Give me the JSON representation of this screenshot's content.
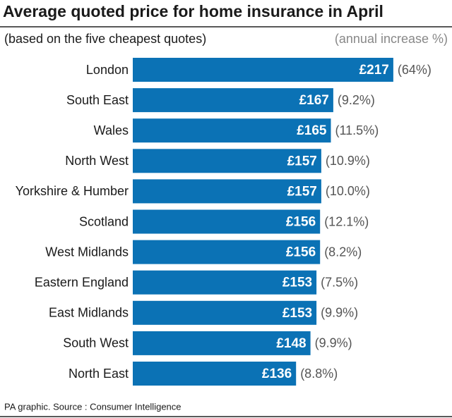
{
  "chart_data": {
    "type": "bar",
    "orientation": "horizontal",
    "title": "Average quoted price for home insurance in April",
    "subtitle": "(based on the five cheapest quotes)",
    "annotation_header": "(annual increase %)",
    "categories": [
      "London",
      "South East",
      "Wales",
      "North West",
      "Yorkshire & Humber",
      "Scotland",
      "West Midlands",
      "Eastern England",
      "East Midlands",
      "South West",
      "North East"
    ],
    "values": [
      217,
      167,
      165,
      157,
      157,
      156,
      156,
      153,
      153,
      148,
      136
    ],
    "value_labels": [
      "£217",
      "£167",
      "£165",
      "£157",
      "£157",
      "£156",
      "£156",
      "£153",
      "£153",
      "£148",
      "£136"
    ],
    "annual_increase_labels": [
      "(64%)",
      "(9.2%)",
      "(11.5%)",
      "(10.9%)",
      "(10.0%)",
      "(12.1%)",
      "(8.2%)",
      "(7.5%)",
      "(9.9%)",
      "(9.9%)",
      "(8.8%)"
    ],
    "color": "#0b72b5",
    "source": "PA graphic. Source : Consumer Intelligence"
  }
}
